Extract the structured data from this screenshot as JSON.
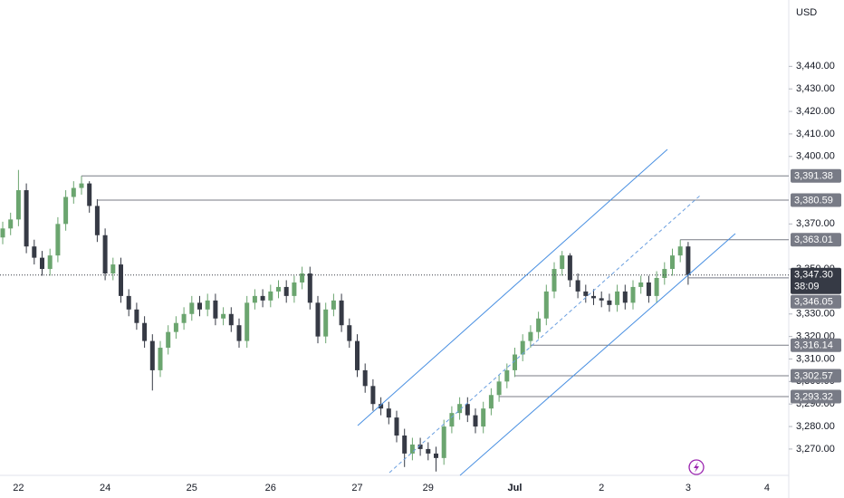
{
  "chart_data": {
    "type": "candlestick",
    "currency": "USD",
    "up_color": "#6ba56f",
    "down_color": "#363a45",
    "categories": [
      null,
      null,
      "22",
      null,
      null,
      null,
      null,
      null,
      null,
      null,
      null,
      null,
      null,
      "24",
      null,
      null,
      null,
      null,
      null,
      null,
      null,
      null,
      null,
      null,
      "25",
      null,
      null,
      null,
      null,
      null,
      null,
      null,
      null,
      null,
      "26",
      null,
      null,
      null,
      null,
      null,
      null,
      null,
      null,
      null,
      null,
      "27",
      null,
      null,
      null,
      null,
      null,
      null,
      null,
      null,
      "29",
      null,
      null,
      null,
      null,
      null,
      null,
      null,
      null,
      null,
      null,
      "Jul",
      null,
      null,
      null,
      null,
      null,
      null,
      null,
      null,
      null,
      null,
      "2",
      null,
      null,
      null,
      null,
      null,
      null,
      null,
      null,
      null,
      null,
      "3",
      null,
      null,
      null,
      null,
      null,
      null,
      null,
      null,
      null,
      "4"
    ],
    "open": [
      3364,
      3368,
      3372,
      3385,
      3360,
      3355,
      3350,
      3356,
      3370,
      3382,
      3386,
      3388,
      3378,
      3365,
      3348,
      3352,
      3338,
      3332,
      3326,
      3318,
      3305,
      3315,
      3322,
      3326,
      3330,
      3335,
      3332,
      3336,
      3328,
      3330,
      3325,
      3318,
      3335,
      3338,
      3336,
      3340,
      3342,
      3338,
      3344,
      3348,
      3335,
      3320,
      3332,
      3336,
      3325,
      3318,
      3305,
      3298,
      3290,
      3288,
      3284,
      3276,
      3268,
      3272,
      3270,
      3268,
      3266,
      3280,
      3286,
      3290,
      3285,
      3280,
      3288,
      3294,
      3300,
      3305,
      3312,
      3318,
      3322,
      3328,
      3340,
      3350,
      3356,
      3345,
      3340,
      3338,
      3337,
      3336,
      3334,
      3340,
      3335,
      3342,
      3344,
      3338,
      3346,
      3350,
      3356,
      3360,
      null,
      null,
      null,
      null,
      null,
      null,
      null,
      null,
      null,
      null
    ],
    "high": [
      3371,
      3375,
      3394,
      3388,
      3363,
      3358,
      3359,
      3373,
      3385,
      3389,
      3391.38,
      3389,
      3381,
      3368,
      3355,
      3355,
      3341,
      3335,
      3329,
      3321,
      3318,
      3325,
      3329,
      3333,
      3338,
      3338,
      3339,
      3339,
      3333,
      3333,
      3328,
      3338,
      3341,
      3341,
      3343,
      3345,
      3345,
      3347,
      3351,
      3351,
      3338,
      3335,
      3339,
      3339,
      3328,
      3321,
      3308,
      3301,
      3293,
      3291,
      3287,
      3279,
      3275,
      3275,
      3273,
      3271,
      3283,
      3289,
      3293,
      3293,
      3288,
      3291,
      3297,
      3303,
      3308,
      3315,
      3321,
      3325,
      3331,
      3343,
      3353,
      3358,
      3357,
      3348,
      3343,
      3341,
      3340,
      3339,
      3343,
      3343,
      3345,
      3347,
      3347,
      3349,
      3353,
      3359,
      3363.01,
      3362,
      null,
      null,
      null,
      null,
      null,
      null,
      null,
      null,
      null,
      null
    ],
    "low": [
      3361,
      3365,
      3369,
      3357,
      3352,
      3347,
      3347,
      3353,
      3367,
      3379,
      3383,
      3375,
      3362,
      3345,
      3345,
      3335,
      3329,
      3323,
      3315,
      3296,
      3302,
      3312,
      3319,
      3323,
      3327,
      3329,
      3329,
      3325,
      3325,
      3322,
      3315,
      3315,
      3332,
      3333,
      3333,
      3337,
      3335,
      3335,
      3341,
      3332,
      3317,
      3317,
      3329,
      3322,
      3315,
      3302,
      3295,
      3287,
      3285,
      3281,
      3273,
      3262,
      3265,
      3267,
      3265,
      3260,
      3263,
      3277,
      3283,
      3282,
      3277,
      3277,
      3285,
      3291,
      3297,
      3302,
      3309,
      3315,
      3319,
      3325,
      3337,
      3347,
      3342,
      3337,
      3335,
      3334,
      3333,
      3331,
      3331,
      3332,
      3332,
      3339,
      3335,
      3335,
      3343,
      3347,
      3353,
      3343,
      null,
      null,
      null,
      null,
      null,
      null,
      null,
      null,
      null,
      null
    ],
    "close": [
      3368,
      3372,
      3385,
      3360,
      3355,
      3350,
      3356,
      3370,
      3382,
      3386,
      3388,
      3378,
      3365,
      3348,
      3352,
      3338,
      3332,
      3326,
      3318,
      3305,
      3315,
      3322,
      3326,
      3330,
      3335,
      3332,
      3336,
      3328,
      3330,
      3325,
      3318,
      3335,
      3338,
      3336,
      3340,
      3342,
      3338,
      3344,
      3348,
      3335,
      3320,
      3332,
      3336,
      3325,
      3318,
      3305,
      3298,
      3290,
      3288,
      3284,
      3276,
      3268,
      3272,
      3270,
      3268,
      3266,
      3280,
      3286,
      3290,
      3285,
      3280,
      3288,
      3294,
      3300,
      3305,
      3312,
      3318,
      3322,
      3328,
      3340,
      3350,
      3356,
      3345,
      3340,
      3338,
      3337,
      3336,
      3334,
      3340,
      3335,
      3342,
      3344,
      3338,
      3346,
      3350,
      3356,
      3360,
      3347.3,
      null,
      null,
      null,
      null,
      null,
      null,
      null,
      null,
      null,
      null
    ],
    "ylim": [
      3258.3,
      3469.5
    ],
    "yticks": [
      {
        "value": 3440,
        "label": "3,440.00"
      },
      {
        "value": 3430,
        "label": "3,430.00"
      },
      {
        "value": 3420,
        "label": "3,420.00"
      },
      {
        "value": 3410,
        "label": "3,410.00"
      },
      {
        "value": 3400,
        "label": "3,400.00"
      },
      {
        "value": 3370,
        "label": "3,370.00"
      },
      {
        "value": 3350,
        "label": "3,350.00"
      },
      {
        "value": 3330,
        "label": "3,330.00"
      },
      {
        "value": 3320,
        "label": "3,320.00"
      },
      {
        "value": 3310,
        "label": "3,310.00"
      },
      {
        "value": 3300,
        "label": "3,300.00"
      },
      {
        "value": 3290,
        "label": "3,290.00"
      },
      {
        "value": 3280,
        "label": "3,280.00"
      },
      {
        "value": 3270,
        "label": "3,270.00"
      }
    ],
    "levels": [
      {
        "value": 3391.38,
        "label": "3,391.38"
      },
      {
        "value": 3380.59,
        "label": "3,380.59"
      },
      {
        "value": 3363.01,
        "label": "3,363.01"
      },
      {
        "value": 3316.14,
        "label": "3,316.14"
      },
      {
        "value": 3302.57,
        "label": "3,302.57"
      },
      {
        "value": 3293.32,
        "label": "3,293.32"
      }
    ],
    "last_price": {
      "value": 3347.3,
      "label": "3,347.30"
    },
    "countdown": "38:09",
    "bid_price": {
      "value": 3346.05,
      "label": "3,346.05"
    }
  }
}
